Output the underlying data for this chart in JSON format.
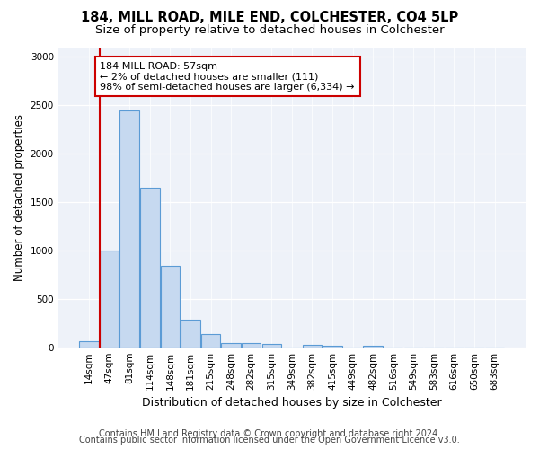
{
  "title1": "184, MILL ROAD, MILE END, COLCHESTER, CO4 5LP",
  "title2": "Size of property relative to detached houses in Colchester",
  "xlabel": "Distribution of detached houses by size in Colchester",
  "ylabel": "Number of detached properties",
  "categories": [
    "14sqm",
    "47sqm",
    "81sqm",
    "114sqm",
    "148sqm",
    "181sqm",
    "215sqm",
    "248sqm",
    "282sqm",
    "315sqm",
    "349sqm",
    "382sqm",
    "415sqm",
    "449sqm",
    "482sqm",
    "516sqm",
    "549sqm",
    "583sqm",
    "616sqm",
    "650sqm",
    "683sqm"
  ],
  "values": [
    60,
    1000,
    2450,
    1650,
    840,
    285,
    140,
    45,
    45,
    35,
    0,
    25,
    15,
    0,
    20,
    0,
    0,
    0,
    0,
    0,
    0
  ],
  "bar_color": "#c6d9f0",
  "bar_edge_color": "#5b9bd5",
  "bar_linewidth": 0.8,
  "annotation_text": "184 MILL ROAD: 57sqm\n← 2% of detached houses are smaller (111)\n98% of semi-detached houses are larger (6,334) →",
  "annotation_box_color": "#ffffff",
  "annotation_box_edge_color": "#cc0000",
  "vline_color": "#cc0000",
  "ylim": [
    0,
    3100
  ],
  "yticks": [
    0,
    500,
    1000,
    1500,
    2000,
    2500,
    3000
  ],
  "bg_color": "#eef2f9",
  "footer1": "Contains HM Land Registry data © Crown copyright and database right 2024.",
  "footer2": "Contains public sector information licensed under the Open Government Licence v3.0.",
  "title_fontsize": 10.5,
  "subtitle_fontsize": 9.5,
  "xlabel_fontsize": 9,
  "ylabel_fontsize": 8.5,
  "tick_fontsize": 7.5,
  "annotation_fontsize": 8,
  "footer_fontsize": 7
}
